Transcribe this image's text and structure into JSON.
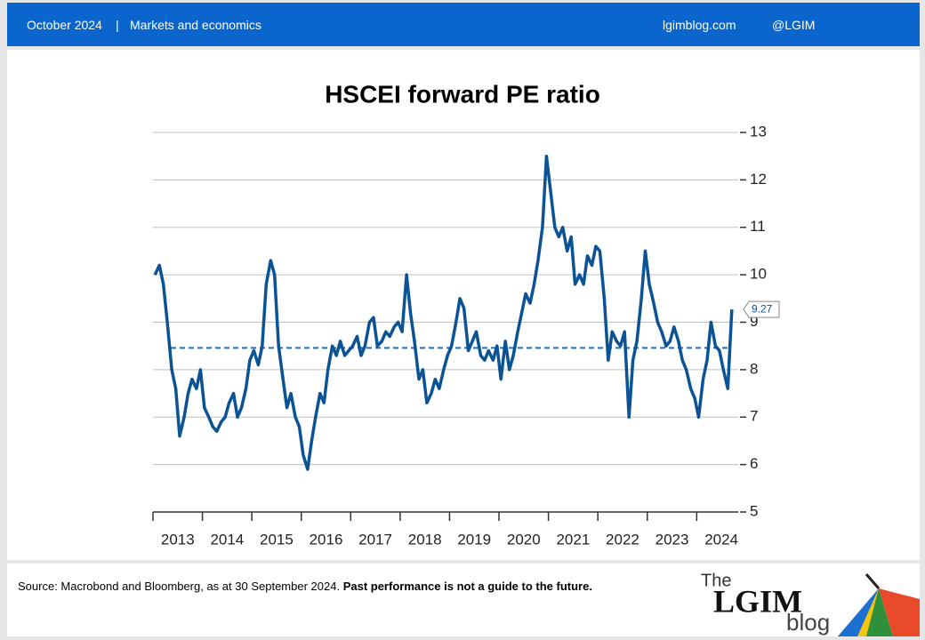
{
  "header": {
    "date": "October 2024",
    "section": "Markets and economics",
    "site": "lgimblog.com",
    "handle": "@LGIM"
  },
  "chart_data": {
    "type": "line",
    "title": "HSCEI forward PE ratio",
    "xlim": [
      2013,
      2024.84
    ],
    "xticks": [
      {
        "value": 2013,
        "label": "2013"
      },
      {
        "value": 2014,
        "label": "2014"
      },
      {
        "value": 2015,
        "label": "2015"
      },
      {
        "value": 2016,
        "label": "2016"
      },
      {
        "value": 2017,
        "label": "2017"
      },
      {
        "value": 2018,
        "label": "2018"
      },
      {
        "value": 2019,
        "label": "2019"
      },
      {
        "value": 2020,
        "label": "2020"
      },
      {
        "value": 2021,
        "label": "2021"
      },
      {
        "value": 2022,
        "label": "2022"
      },
      {
        "value": 2023,
        "label": "2023"
      },
      {
        "value": 2024,
        "label": "2024"
      }
    ],
    "ylim": [
      5,
      13
    ],
    "yticks": [
      5,
      6,
      7,
      8,
      9,
      10,
      11,
      12,
      13
    ],
    "grid": true,
    "hline": 8.46,
    "hline_color": "#1a6fc0",
    "x": [
      2013.04,
      2013.13,
      2013.21,
      2013.29,
      2013.38,
      2013.46,
      2013.54,
      2013.63,
      2013.71,
      2013.79,
      2013.88,
      2013.96,
      2014.04,
      2014.13,
      2014.21,
      2014.29,
      2014.38,
      2014.46,
      2014.54,
      2014.63,
      2014.71,
      2014.79,
      2014.88,
      2014.96,
      2015.04,
      2015.13,
      2015.21,
      2015.29,
      2015.38,
      2015.46,
      2015.54,
      2015.63,
      2015.71,
      2015.79,
      2015.88,
      2015.96,
      2016.04,
      2016.13,
      2016.21,
      2016.29,
      2016.38,
      2016.46,
      2016.54,
      2016.63,
      2016.71,
      2016.79,
      2016.88,
      2016.96,
      2017.04,
      2017.13,
      2017.21,
      2017.29,
      2017.38,
      2017.46,
      2017.54,
      2017.63,
      2017.71,
      2017.79,
      2017.88,
      2017.96,
      2018.04,
      2018.13,
      2018.21,
      2018.29,
      2018.38,
      2018.46,
      2018.54,
      2018.63,
      2018.71,
      2018.79,
      2018.88,
      2018.96,
      2019.04,
      2019.13,
      2019.21,
      2019.29,
      2019.38,
      2019.46,
      2019.54,
      2019.63,
      2019.71,
      2019.79,
      2019.88,
      2019.96,
      2020.04,
      2020.13,
      2020.21,
      2020.29,
      2020.38,
      2020.46,
      2020.54,
      2020.63,
      2020.71,
      2020.79,
      2020.88,
      2020.96,
      2021.04,
      2021.13,
      2021.21,
      2021.29,
      2021.38,
      2021.46,
      2021.54,
      2021.63,
      2021.71,
      2021.79,
      2021.88,
      2021.96,
      2022.04,
      2022.13,
      2022.21,
      2022.29,
      2022.38,
      2022.46,
      2022.54,
      2022.63,
      2022.71,
      2022.79,
      2022.88,
      2022.96,
      2023.04,
      2023.13,
      2023.21,
      2023.29,
      2023.38,
      2023.46,
      2023.54,
      2023.63,
      2023.71,
      2023.79,
      2023.88,
      2023.96,
      2024.04,
      2024.13,
      2024.21,
      2024.29,
      2024.38,
      2024.46,
      2024.54,
      2024.63,
      2024.71
    ],
    "series": [
      {
        "color": "#0b5394",
        "values": [
          10.0,
          10.2,
          9.8,
          9.0,
          8.0,
          7.6,
          6.6,
          7.0,
          7.5,
          7.8,
          7.6,
          8.0,
          7.2,
          7.0,
          6.8,
          6.7,
          6.9,
          7.0,
          7.3,
          7.5,
          7.0,
          7.2,
          7.6,
          8.2,
          8.4,
          8.1,
          8.5,
          9.8,
          10.3,
          10.0,
          8.5,
          7.8,
          7.2,
          7.5,
          7.0,
          6.8,
          6.2,
          5.9,
          6.5,
          7.0,
          7.5,
          7.3,
          8.0,
          8.5,
          8.3,
          8.6,
          8.3,
          8.4,
          8.5,
          8.7,
          8.3,
          8.5,
          9.0,
          9.1,
          8.5,
          8.6,
          8.8,
          8.7,
          8.9,
          9.0,
          8.8,
          10.0,
          9.2,
          8.6,
          7.8,
          8.0,
          7.3,
          7.5,
          7.8,
          7.6,
          8.0,
          8.3,
          8.5,
          9.0,
          9.5,
          9.3,
          8.4,
          8.6,
          8.8,
          8.3,
          8.2,
          8.4,
          8.2,
          8.5,
          7.8,
          8.6,
          8.0,
          8.3,
          8.8,
          9.2,
          9.6,
          9.4,
          9.8,
          10.3,
          11.0,
          12.5,
          11.8,
          11.0,
          10.8,
          11.0,
          10.5,
          10.8,
          9.8,
          10.0,
          9.8,
          10.4,
          10.2,
          10.6,
          10.5,
          9.5,
          8.2,
          8.8,
          8.6,
          8.5,
          8.8,
          7.0,
          8.2,
          8.6,
          9.5,
          10.5,
          9.8,
          9.4,
          9.0,
          8.8,
          8.5,
          8.6,
          8.9,
          8.6,
          8.2,
          8.0,
          7.6,
          7.4,
          7.0,
          7.8,
          8.2,
          9.0,
          8.5,
          8.4,
          8.0,
          7.6,
          9.27
        ]
      }
    ]
  },
  "footer": {
    "source": "Source: Macrobond and Bloomberg, as at 30 September 2024.",
    "disclaimer": "Past performance is not a guide to the future."
  },
  "logo": {
    "the": "The",
    "name": "LGIM",
    "blog": "blog"
  }
}
